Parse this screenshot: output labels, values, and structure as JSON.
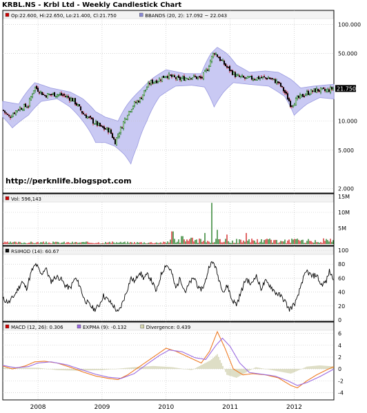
{
  "title": "KRBL.NS - Krbl Ltd - Weekly Candlestick Chart",
  "watermark": "http://perknlife.blogspot.com",
  "colors": {
    "up": "#006600",
    "down": "#cc0000",
    "candle_body": "#000000",
    "bband_fill": "#c9c9f3",
    "bband_edge": "#9a9ae0",
    "rsi": "#000000",
    "macd": "#ee7a22",
    "expma": "#9a6ae0",
    "divergence": "#c8c8a0",
    "legend_red": "#cc0000",
    "legend_purple": "#8a8ad8",
    "legend_tan": "#d8d8b0"
  },
  "chart_data": [
    {
      "type": "candlestick",
      "name": "price",
      "legend": [
        {
          "label": "Op:22.600, Hi:22.650, Lo:21.400, Cl:21.750",
          "icon": "red-square"
        },
        {
          "label": "BBANDS (20, 2): 17.092 ~ 22.043",
          "icon": "blue-square"
        }
      ],
      "y_scale": "log",
      "ylim": [
        1.8,
        140
      ],
      "y_ticks": [
        2.0,
        5.0,
        10.0,
        50.0,
        100.0
      ],
      "y_tick_labels": [
        "2.000",
        "5.000",
        "10.000",
        "50.000",
        "100.000"
      ],
      "last_value_label": "21.750",
      "last_value": 21.75,
      "x_range": [
        2007.45,
        2012.62
      ],
      "x_ticks": [
        2008,
        2009,
        2010,
        2011,
        2012
      ],
      "x_tick_labels": [
        "2008",
        "2009",
        "2010",
        "2011",
        "2012"
      ],
      "close_path": [
        [
          2007.45,
          13.0
        ],
        [
          2007.55,
          11.0
        ],
        [
          2007.7,
          13.5
        ],
        [
          2007.85,
          14.5
        ],
        [
          2007.95,
          22.5
        ],
        [
          2008.1,
          18.5
        ],
        [
          2008.25,
          19.0
        ],
        [
          2008.4,
          18.5
        ],
        [
          2008.55,
          16.5
        ],
        [
          2008.7,
          12.0
        ],
        [
          2008.85,
          10.0
        ],
        [
          2008.95,
          9.0
        ],
        [
          2009.0,
          8.5
        ],
        [
          2009.12,
          8.0
        ],
        [
          2009.2,
          6.0
        ],
        [
          2009.3,
          8.5
        ],
        [
          2009.4,
          12.0
        ],
        [
          2009.5,
          15.0
        ],
        [
          2009.6,
          17.0
        ],
        [
          2009.75,
          25.0
        ],
        [
          2009.9,
          27.0
        ],
        [
          2010.0,
          30.0
        ],
        [
          2010.2,
          27.0
        ],
        [
          2010.4,
          29.0
        ],
        [
          2010.55,
          27.5
        ],
        [
          2010.65,
          35.0
        ],
        [
          2010.75,
          52.0
        ],
        [
          2010.85,
          43.0
        ],
        [
          2010.95,
          36.0
        ],
        [
          2011.1,
          29.0
        ],
        [
          2011.25,
          27.5
        ],
        [
          2011.45,
          28.0
        ],
        [
          2011.6,
          28.0
        ],
        [
          2011.75,
          25.0
        ],
        [
          2011.85,
          20.0
        ],
        [
          2011.95,
          14.5
        ],
        [
          2012.05,
          17.0
        ],
        [
          2012.2,
          19.5
        ],
        [
          2012.35,
          21.0
        ],
        [
          2012.5,
          20.5
        ],
        [
          2012.6,
          21.75
        ]
      ],
      "bband_upper": [
        [
          2007.45,
          16.0
        ],
        [
          2007.7,
          15.0
        ],
        [
          2007.95,
          25.0
        ],
        [
          2008.2,
          22.0
        ],
        [
          2008.5,
          20.0
        ],
        [
          2008.7,
          17.0
        ],
        [
          2008.9,
          12.5
        ],
        [
          2009.05,
          11.0
        ],
        [
          2009.25,
          10.0
        ],
        [
          2009.4,
          15.0
        ],
        [
          2009.6,
          21.0
        ],
        [
          2009.8,
          28.0
        ],
        [
          2010.0,
          34.0
        ],
        [
          2010.3,
          31.0
        ],
        [
          2010.55,
          31.0
        ],
        [
          2010.7,
          50.0
        ],
        [
          2010.8,
          58.0
        ],
        [
          2010.95,
          50.0
        ],
        [
          2011.1,
          38.0
        ],
        [
          2011.3,
          32.0
        ],
        [
          2011.55,
          33.0
        ],
        [
          2011.75,
          32.0
        ],
        [
          2011.95,
          27.0
        ],
        [
          2012.1,
          22.0
        ],
        [
          2012.3,
          23.0
        ],
        [
          2012.6,
          24.0
        ]
      ],
      "bband_lower": [
        [
          2007.45,
          11.0
        ],
        [
          2007.6,
          8.5
        ],
        [
          2007.85,
          11.5
        ],
        [
          2008.05,
          16.0
        ],
        [
          2008.3,
          17.0
        ],
        [
          2008.5,
          14.0
        ],
        [
          2008.75,
          9.0
        ],
        [
          2008.9,
          6.0
        ],
        [
          2009.05,
          6.0
        ],
        [
          2009.2,
          5.5
        ],
        [
          2009.35,
          4.5
        ],
        [
          2009.45,
          3.6
        ],
        [
          2009.55,
          5.5
        ],
        [
          2009.7,
          10.0
        ],
        [
          2009.9,
          18.0
        ],
        [
          2010.15,
          23.0
        ],
        [
          2010.4,
          23.5
        ],
        [
          2010.6,
          22.5
        ],
        [
          2010.75,
          14.0
        ],
        [
          2010.9,
          20.0
        ],
        [
          2011.05,
          25.0
        ],
        [
          2011.3,
          24.0
        ],
        [
          2011.6,
          23.0
        ],
        [
          2011.85,
          18.0
        ],
        [
          2012.0,
          11.5
        ],
        [
          2012.2,
          15.0
        ],
        [
          2012.4,
          17.5
        ],
        [
          2012.6,
          17.0
        ]
      ]
    },
    {
      "type": "bar",
      "name": "volume",
      "legend": [
        {
          "label": "Vol: 596,143",
          "icon": "red-square"
        }
      ],
      "ylim": [
        0,
        15000000
      ],
      "y_ticks": [
        0,
        5000000,
        10000000,
        15000000
      ],
      "y_tick_labels": [
        "",
        "5M",
        "10M",
        "15M"
      ],
      "values_approx": [
        [
          2010.1,
          4000000
        ],
        [
          2010.25,
          2500000
        ],
        [
          2010.4,
          2000000
        ],
        [
          2010.6,
          3500000
        ],
        [
          2010.72,
          13000000
        ],
        [
          2010.8,
          4500000
        ],
        [
          2010.95,
          3000000
        ],
        [
          2011.25,
          3500000
        ],
        [
          2011.6,
          1500000
        ],
        [
          2012.2,
          1000000
        ],
        [
          2012.55,
          800000
        ]
      ]
    },
    {
      "type": "line",
      "name": "rsi",
      "legend": [
        {
          "label": "RSIMOD (14): 60.67",
          "icon": "black-square"
        }
      ],
      "ylim": [
        0,
        100
      ],
      "y_ticks": [
        0,
        20,
        40,
        60,
        80,
        100
      ],
      "y_tick_labels": [
        "0",
        "20",
        "40",
        "60",
        "80",
        "100"
      ],
      "values": [
        [
          2007.45,
          30
        ],
        [
          2007.55,
          25
        ],
        [
          2007.65,
          38
        ],
        [
          2007.75,
          55
        ],
        [
          2007.82,
          45
        ],
        [
          2007.9,
          70
        ],
        [
          2007.97,
          80
        ],
        [
          2008.05,
          65
        ],
        [
          2008.12,
          75
        ],
        [
          2008.2,
          55
        ],
        [
          2008.28,
          62
        ],
        [
          2008.35,
          60
        ],
        [
          2008.42,
          50
        ],
        [
          2008.5,
          45
        ],
        [
          2008.58,
          60
        ],
        [
          2008.65,
          50
        ],
        [
          2008.72,
          30
        ],
        [
          2008.8,
          22
        ],
        [
          2008.88,
          15
        ],
        [
          2008.95,
          20
        ],
        [
          2009.02,
          35
        ],
        [
          2009.1,
          28
        ],
        [
          2009.18,
          20
        ],
        [
          2009.25,
          10
        ],
        [
          2009.3,
          20
        ],
        [
          2009.38,
          40
        ],
        [
          2009.45,
          60
        ],
        [
          2009.52,
          55
        ],
        [
          2009.58,
          70
        ],
        [
          2009.65,
          60
        ],
        [
          2009.72,
          65
        ],
        [
          2009.78,
          55
        ],
        [
          2009.85,
          40
        ],
        [
          2009.92,
          65
        ],
        [
          2010.0,
          80
        ],
        [
          2010.08,
          70
        ],
        [
          2010.15,
          45
        ],
        [
          2010.22,
          60
        ],
        [
          2010.3,
          40
        ],
        [
          2010.38,
          55
        ],
        [
          2010.45,
          60
        ],
        [
          2010.52,
          42
        ],
        [
          2010.6,
          50
        ],
        [
          2010.68,
          80
        ],
        [
          2010.75,
          82
        ],
        [
          2010.82,
          60
        ],
        [
          2010.9,
          40
        ],
        [
          2010.96,
          50
        ],
        [
          2011.02,
          30
        ],
        [
          2011.1,
          22
        ],
        [
          2011.18,
          42
        ],
        [
          2011.25,
          60
        ],
        [
          2011.33,
          50
        ],
        [
          2011.4,
          65
        ],
        [
          2011.48,
          45
        ],
        [
          2011.55,
          55
        ],
        [
          2011.62,
          50
        ],
        [
          2011.7,
          40
        ],
        [
          2011.78,
          35
        ],
        [
          2011.85,
          28
        ],
        [
          2011.92,
          15
        ],
        [
          2011.98,
          20
        ],
        [
          2012.05,
          30
        ],
        [
          2012.12,
          55
        ],
        [
          2012.2,
          70
        ],
        [
          2012.28,
          62
        ],
        [
          2012.35,
          65
        ],
        [
          2012.42,
          50
        ],
        [
          2012.5,
          55
        ],
        [
          2012.55,
          70
        ],
        [
          2012.6,
          60.67
        ]
      ]
    },
    {
      "type": "line",
      "name": "macd",
      "legend": [
        {
          "label": "MACD (12, 26): 0.306",
          "icon": "red-square"
        },
        {
          "label": "EXPMA (9): -0.132",
          "icon": "purple-square"
        },
        {
          "label": "Divergence: 0.439",
          "icon": "tan-square"
        }
      ],
      "ylim": [
        -5,
        7
      ],
      "y_ticks": [
        -4,
        -2,
        0,
        2,
        4,
        6
      ],
      "y_tick_labels": [
        "-4",
        "-2",
        "0",
        "2",
        "4",
        "6"
      ],
      "series": [
        {
          "name": "MACD (12, 26)",
          "values": [
            [
              2007.45,
              0.5
            ],
            [
              2007.6,
              0.0
            ],
            [
              2007.8,
              0.5
            ],
            [
              2007.95,
              1.2
            ],
            [
              2008.1,
              1.3
            ],
            [
              2008.3,
              1.0
            ],
            [
              2008.5,
              0.3
            ],
            [
              2008.7,
              -0.5
            ],
            [
              2008.9,
              -1.2
            ],
            [
              2009.1,
              -1.6
            ],
            [
              2009.25,
              -1.8
            ],
            [
              2009.4,
              -1.0
            ],
            [
              2009.6,
              0.5
            ],
            [
              2009.8,
              2.0
            ],
            [
              2010.0,
              3.5
            ],
            [
              2010.15,
              3.0
            ],
            [
              2010.35,
              2.0
            ],
            [
              2010.55,
              1.0
            ],
            [
              2010.68,
              3.0
            ],
            [
              2010.8,
              6.3
            ],
            [
              2010.92,
              3.5
            ],
            [
              2011.05,
              0.0
            ],
            [
              2011.2,
              -1.0
            ],
            [
              2011.35,
              -0.8
            ],
            [
              2011.55,
              -1.0
            ],
            [
              2011.75,
              -1.5
            ],
            [
              2011.95,
              -2.8
            ],
            [
              2012.05,
              -3.2
            ],
            [
              2012.2,
              -2.0
            ],
            [
              2012.35,
              -1.0
            ],
            [
              2012.5,
              -0.2
            ],
            [
              2012.6,
              0.306
            ]
          ]
        },
        {
          "name": "EXPMA (9)",
          "values": [
            [
              2007.45,
              0.6
            ],
            [
              2007.65,
              0.2
            ],
            [
              2007.85,
              0.4
            ],
            [
              2008.0,
              1.0
            ],
            [
              2008.2,
              1.2
            ],
            [
              2008.45,
              0.7
            ],
            [
              2008.7,
              -0.2
            ],
            [
              2008.9,
              -0.9
            ],
            [
              2009.1,
              -1.4
            ],
            [
              2009.3,
              -1.6
            ],
            [
              2009.5,
              -0.8
            ],
            [
              2009.7,
              0.8
            ],
            [
              2009.9,
              2.3
            ],
            [
              2010.05,
              3.2
            ],
            [
              2010.25,
              2.9
            ],
            [
              2010.45,
              1.9
            ],
            [
              2010.62,
              1.6
            ],
            [
              2010.78,
              4.0
            ],
            [
              2010.88,
              5.2
            ],
            [
              2011.0,
              3.8
            ],
            [
              2011.15,
              1.0
            ],
            [
              2011.3,
              -0.6
            ],
            [
              2011.5,
              -0.9
            ],
            [
              2011.7,
              -1.2
            ],
            [
              2011.9,
              -2.0
            ],
            [
              2012.05,
              -2.8
            ],
            [
              2012.2,
              -2.3
            ],
            [
              2012.4,
              -1.3
            ],
            [
              2012.6,
              -0.132
            ]
          ]
        }
      ],
      "divergence_approx": [
        [
          2008.0,
          0.2
        ],
        [
          2008.3,
          -0.2
        ],
        [
          2008.6,
          -0.3
        ],
        [
          2009.0,
          -0.2
        ],
        [
          2009.5,
          0.3
        ],
        [
          2009.8,
          0.5
        ],
        [
          2010.1,
          0.3
        ],
        [
          2010.4,
          -0.2
        ],
        [
          2010.7,
          1.5
        ],
        [
          2010.8,
          2.5
        ],
        [
          2010.95,
          -1.0
        ],
        [
          2011.1,
          -1.5
        ],
        [
          2011.4,
          0.3
        ],
        [
          2011.7,
          -0.3
        ],
        [
          2011.95,
          -0.8
        ],
        [
          2012.2,
          0.4
        ],
        [
          2012.4,
          0.6
        ],
        [
          2012.6,
          0.439
        ]
      ]
    }
  ]
}
